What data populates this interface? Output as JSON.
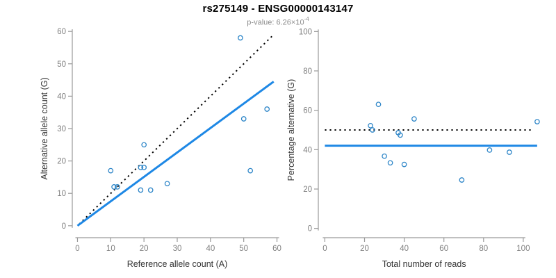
{
  "header": {
    "title": "rs275149 - ENSG00000143147",
    "p_value_prefix": "p-value: 6.26×10",
    "p_value_exponent": "-4"
  },
  "colors": {
    "title": "#000000",
    "subtitle": "#8C8C8C",
    "point": "#2E86C8",
    "regression_line": "#1E88E5",
    "identity_line": "#000000",
    "axis": "#9A9A9A",
    "tick_label": "#7F7F7F",
    "axis_title": "#333333",
    "background": "#FFFFFF"
  },
  "chart_data": [
    {
      "type": "scatter",
      "name": "allele-count-plot",
      "xlabel": "Reference allele count (A)",
      "ylabel": "Alternative allele count (G)",
      "xlim": [
        -2.4,
        62.4
      ],
      "ylim": [
        -2.4,
        62.4
      ],
      "xticks": [
        0,
        10,
        20,
        30,
        40,
        50,
        60
      ],
      "yticks": [
        0,
        10,
        20,
        30,
        40,
        50,
        60
      ],
      "grid": false,
      "legend": false,
      "marker": "open-circle",
      "points": [
        [
          10,
          17
        ],
        [
          11,
          12
        ],
        [
          12,
          12
        ],
        [
          19,
          11
        ],
        [
          19,
          18
        ],
        [
          20,
          18
        ],
        [
          20,
          25
        ],
        [
          22,
          11
        ],
        [
          27,
          13
        ],
        [
          49,
          58
        ],
        [
          50,
          33
        ],
        [
          52,
          17
        ],
        [
          57,
          36
        ]
      ],
      "lines": [
        {
          "name": "identity-line",
          "meaning": "y = x (50% expectation)",
          "style": "dotted",
          "color_key": "identity_line",
          "x": [
            0.5,
            58.5
          ],
          "y": [
            0.5,
            58.5
          ]
        },
        {
          "name": "regression-line",
          "meaning": "fitted allelic ratio y ≈ 0.75x",
          "style": "solid",
          "color_key": "regression_line",
          "x": [
            0,
            59
          ],
          "y": [
            0,
            44.5
          ]
        }
      ]
    },
    {
      "type": "scatter",
      "name": "percentage-plot",
      "xlabel": "Total number of reads",
      "ylabel": "Percentage alternative (G)",
      "xlim": [
        -4,
        111.6
      ],
      "ylim": [
        -4,
        104
      ],
      "xticks": [
        0,
        20,
        40,
        60,
        80,
        100
      ],
      "yticks": [
        0,
        20,
        40,
        60,
        80,
        100
      ],
      "grid": false,
      "legend": false,
      "marker": "open-circle",
      "points": [
        [
          23,
          52.2
        ],
        [
          24,
          50.0
        ],
        [
          27,
          63.0
        ],
        [
          30,
          36.7
        ],
        [
          33,
          33.3
        ],
        [
          37,
          48.6
        ],
        [
          38,
          47.4
        ],
        [
          40,
          32.5
        ],
        [
          45,
          55.6
        ],
        [
          69,
          24.6
        ],
        [
          83,
          39.8
        ],
        [
          93,
          38.7
        ],
        [
          107,
          54.2
        ]
      ],
      "lines": [
        {
          "name": "expected-percentage-line",
          "meaning": "50% expectation",
          "style": "dotted",
          "color_key": "identity_line",
          "x": [
            0,
            105
          ],
          "y": [
            50,
            50
          ]
        },
        {
          "name": "mean-percentage-line",
          "meaning": "observed mean percentage ≈ 42%",
          "style": "solid",
          "color_key": "regression_line",
          "x": [
            0,
            107
          ],
          "y": [
            42,
            42
          ]
        }
      ]
    }
  ]
}
